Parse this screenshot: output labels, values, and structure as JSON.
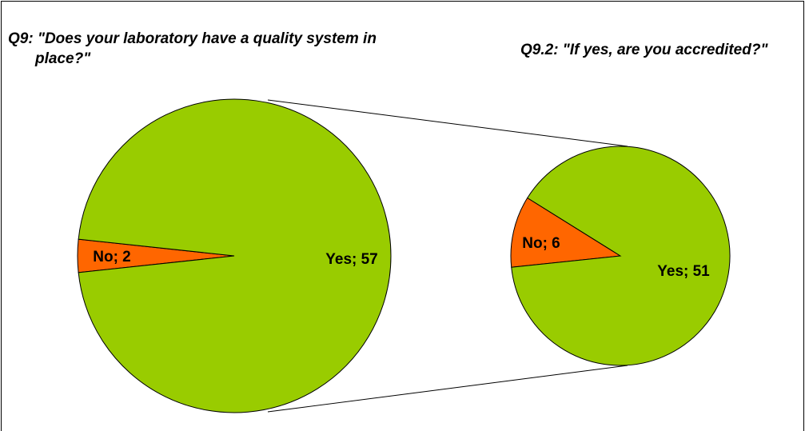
{
  "chart_data": [
    {
      "type": "pie",
      "title": "Q9: \"Does your laboratory have a quality system in place?\"",
      "values": [
        2,
        57
      ],
      "value_labels": [
        "No; 2",
        "Yes; 57"
      ],
      "colors": [
        "#ff6600",
        "#99cc00"
      ]
    },
    {
      "type": "pie",
      "title": "Q9.2: \"If yes, are you accredited?\"",
      "values": [
        6,
        51
      ],
      "value_labels": [
        "No; 6",
        "Yes; 51"
      ],
      "colors": [
        "#ff6600",
        "#99cc00"
      ]
    }
  ]
}
